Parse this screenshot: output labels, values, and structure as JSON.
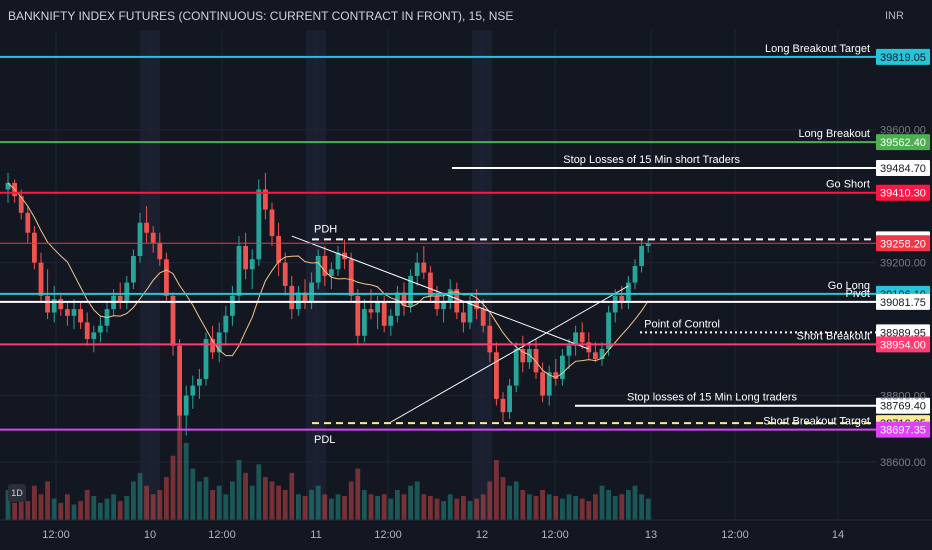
{
  "header": {
    "title": "BANKNIFTY INDEX FUTURES (CONTINUOUS: CURRENT CONTRACT IN FRONT), 15, NSE",
    "currency": "INR"
  },
  "badge": {
    "label": "1D"
  },
  "chart_data": {
    "type": "candlestick",
    "ylim": [
      38600,
      39900
    ],
    "y_ticks": [
      {
        "value": 39600,
        "label": "39600.00"
      },
      {
        "value": 39200,
        "label": "39200.00"
      },
      {
        "value": 38800,
        "label": "38800.00"
      },
      {
        "value": 38600,
        "label": "38600.00"
      }
    ],
    "x_ticks": [
      "12:00",
      "10",
      "12:00",
      "11",
      "12:00",
      "12",
      "12:00",
      "13",
      "12:00",
      "14"
    ],
    "levels": [
      {
        "name": "Long Breakout Target",
        "value": 39819.05,
        "label": "39819.05",
        "color": "#26c6da",
        "badge_bg": "#26c6da",
        "badge_fg": "#131722",
        "style": "solid"
      },
      {
        "name": "Long Breakout",
        "value": 39562.4,
        "label": "39562.40",
        "color": "#4caf50",
        "badge_bg": "#4caf50",
        "badge_fg": "#ffffff",
        "style": "solid"
      },
      {
        "name": "Stop Losses of 15 Min short Traders",
        "value": 39484.7,
        "label": "39484.70",
        "color": "#ffffff",
        "badge_bg": "#ffffff",
        "badge_fg": "#131722",
        "style": "solid",
        "partial": true
      },
      {
        "name": "Go Short",
        "value": 39410.3,
        "label": "39410.30",
        "color": "#ff1744",
        "badge_bg": "#ff1744",
        "badge_fg": "#ffffff",
        "style": "solid"
      },
      {
        "name": "PDH",
        "value": 39270.05,
        "label": "39270.05",
        "color": "#ffffff",
        "badge_bg": "#ffffff",
        "badge_fg": "#131722",
        "style": "dashed",
        "partial": true
      },
      {
        "name": "",
        "value": 39258.2,
        "label": "39258.20",
        "color": "#f23645",
        "badge_bg": "#f23645",
        "badge_fg": "#ffffff",
        "style": "thin"
      },
      {
        "name": "Go Long",
        "value": 39106.1,
        "label": "39106.10",
        "color": "#26c6da",
        "badge_bg": "#26c6da",
        "badge_fg": "#131722",
        "style": "solid"
      },
      {
        "name": "Pivot",
        "value": 39081.75,
        "label": "39081.75",
        "color": "#ffffff",
        "badge_bg": "#ffffff",
        "badge_fg": "#131722",
        "style": "solid"
      },
      {
        "name": "Point of Control",
        "value": 38989.95,
        "label": "38989.95",
        "color": "#ffffff",
        "badge_bg": "#ffffff",
        "badge_fg": "#131722",
        "style": "dotted",
        "partial": true
      },
      {
        "name": "Short Breakout",
        "value": 38954.0,
        "label": "38954.00",
        "color": "#ff3d71",
        "badge_bg": "#ff3d71",
        "badge_fg": "#ffffff",
        "style": "solid"
      },
      {
        "name": "Stop losses of 15 Min Long traders",
        "value": 38769.4,
        "label": "38769.40",
        "color": "#ffffff",
        "badge_bg": "#ffffff",
        "badge_fg": "#131722",
        "style": "solid",
        "partial": true
      },
      {
        "name": "PDL",
        "value": 38716.95,
        "label": "38716.95",
        "color": "#ffeb99",
        "badge_bg": "#ffeb99",
        "badge_fg": "#131722",
        "style": "dashed",
        "partial": true
      },
      {
        "name": "Short Breakout Target",
        "value": 38697.35,
        "label": "38697.35",
        "color": "#e040fb",
        "badge_bg": "#e040fb",
        "badge_fg": "#ffffff",
        "style": "solid"
      }
    ],
    "annotations": [
      "PDH",
      "PDL"
    ],
    "candles": [
      {
        "o": 39420,
        "h": 39470,
        "l": 39380,
        "c": 39440
      },
      {
        "o": 39440,
        "h": 39450,
        "l": 39380,
        "c": 39400
      },
      {
        "o": 39400,
        "h": 39420,
        "l": 39330,
        "c": 39350
      },
      {
        "o": 39350,
        "h": 39370,
        "l": 39260,
        "c": 39290
      },
      {
        "o": 39290,
        "h": 39310,
        "l": 39180,
        "c": 39200
      },
      {
        "o": 39200,
        "h": 39230,
        "l": 39080,
        "c": 39100
      },
      {
        "o": 39100,
        "h": 39180,
        "l": 39030,
        "c": 39050
      },
      {
        "o": 39050,
        "h": 39130,
        "l": 39020,
        "c": 39090
      },
      {
        "o": 39090,
        "h": 39110,
        "l": 39040,
        "c": 39060
      },
      {
        "o": 39060,
        "h": 39080,
        "l": 39010,
        "c": 39040
      },
      {
        "o": 39040,
        "h": 39090,
        "l": 39000,
        "c": 39060
      },
      {
        "o": 39060,
        "h": 39080,
        "l": 39000,
        "c": 39020
      },
      {
        "o": 39020,
        "h": 39050,
        "l": 38950,
        "c": 38970
      },
      {
        "o": 38970,
        "h": 39010,
        "l": 38930,
        "c": 38990
      },
      {
        "o": 38990,
        "h": 39040,
        "l": 38960,
        "c": 39010
      },
      {
        "o": 39010,
        "h": 39080,
        "l": 38990,
        "c": 39060
      },
      {
        "o": 39060,
        "h": 39120,
        "l": 39040,
        "c": 39100
      },
      {
        "o": 39100,
        "h": 39140,
        "l": 39060,
        "c": 39080
      },
      {
        "o": 39080,
        "h": 39160,
        "l": 39060,
        "c": 39140
      },
      {
        "o": 39140,
        "h": 39240,
        "l": 39120,
        "c": 39220
      },
      {
        "o": 39220,
        "h": 39350,
        "l": 39200,
        "c": 39320
      },
      {
        "o": 39320,
        "h": 39370,
        "l": 39260,
        "c": 39290
      },
      {
        "o": 39290,
        "h": 39310,
        "l": 39230,
        "c": 39260
      },
      {
        "o": 39260,
        "h": 39290,
        "l": 39190,
        "c": 39210
      },
      {
        "o": 39210,
        "h": 39230,
        "l": 39080,
        "c": 39100
      },
      {
        "o": 39100,
        "h": 39110,
        "l": 38920,
        "c": 38950
      },
      {
        "o": 38950,
        "h": 38970,
        "l": 38700,
        "c": 38740
      },
      {
        "o": 38740,
        "h": 38830,
        "l": 38680,
        "c": 38800
      },
      {
        "o": 38800,
        "h": 38860,
        "l": 38760,
        "c": 38830
      },
      {
        "o": 38830,
        "h": 38880,
        "l": 38790,
        "c": 38850
      },
      {
        "o": 38850,
        "h": 38990,
        "l": 38830,
        "c": 38970
      },
      {
        "o": 38970,
        "h": 39010,
        "l": 38910,
        "c": 38930
      },
      {
        "o": 38930,
        "h": 39020,
        "l": 38900,
        "c": 38990
      },
      {
        "o": 38990,
        "h": 39070,
        "l": 38950,
        "c": 39040
      },
      {
        "o": 39040,
        "h": 39130,
        "l": 39010,
        "c": 39100
      },
      {
        "o": 39100,
        "h": 39280,
        "l": 39080,
        "c": 39250
      },
      {
        "o": 39250,
        "h": 39290,
        "l": 39150,
        "c": 39180
      },
      {
        "o": 39180,
        "h": 39240,
        "l": 39120,
        "c": 39210
      },
      {
        "o": 39210,
        "h": 39450,
        "l": 39190,
        "c": 39420
      },
      {
        "o": 39420,
        "h": 39470,
        "l": 39330,
        "c": 39360
      },
      {
        "o": 39360,
        "h": 39380,
        "l": 39250,
        "c": 39280
      },
      {
        "o": 39280,
        "h": 39320,
        "l": 39160,
        "c": 39200
      },
      {
        "o": 39200,
        "h": 39230,
        "l": 39100,
        "c": 39130
      },
      {
        "o": 39130,
        "h": 39160,
        "l": 39030,
        "c": 39060
      },
      {
        "o": 39060,
        "h": 39130,
        "l": 39040,
        "c": 39110
      },
      {
        "o": 39110,
        "h": 39150,
        "l": 39060,
        "c": 39080
      },
      {
        "o": 39080,
        "h": 39170,
        "l": 39060,
        "c": 39140
      },
      {
        "o": 39140,
        "h": 39240,
        "l": 39120,
        "c": 39220
      },
      {
        "o": 39220,
        "h": 39250,
        "l": 39130,
        "c": 39160
      },
      {
        "o": 39160,
        "h": 39200,
        "l": 39120,
        "c": 39180
      },
      {
        "o": 39180,
        "h": 39250,
        "l": 39160,
        "c": 39230
      },
      {
        "o": 39230,
        "h": 39270,
        "l": 39180,
        "c": 39210
      },
      {
        "o": 39210,
        "h": 39230,
        "l": 39080,
        "c": 39100
      },
      {
        "o": 39100,
        "h": 39120,
        "l": 38950,
        "c": 38980
      },
      {
        "o": 38980,
        "h": 39090,
        "l": 38960,
        "c": 39060
      },
      {
        "o": 39060,
        "h": 39120,
        "l": 39030,
        "c": 39050
      },
      {
        "o": 39050,
        "h": 39100,
        "l": 39000,
        "c": 39080
      },
      {
        "o": 39080,
        "h": 39100,
        "l": 38990,
        "c": 39010
      },
      {
        "o": 39010,
        "h": 39060,
        "l": 38980,
        "c": 39040
      },
      {
        "o": 39040,
        "h": 39130,
        "l": 39020,
        "c": 39110
      },
      {
        "o": 39110,
        "h": 39140,
        "l": 39040,
        "c": 39070
      },
      {
        "o": 39070,
        "h": 39180,
        "l": 39050,
        "c": 39160
      },
      {
        "o": 39160,
        "h": 39230,
        "l": 39130,
        "c": 39200
      },
      {
        "o": 39200,
        "h": 39250,
        "l": 39150,
        "c": 39170
      },
      {
        "o": 39170,
        "h": 39190,
        "l": 39080,
        "c": 39100
      },
      {
        "o": 39100,
        "h": 39130,
        "l": 39040,
        "c": 39060
      },
      {
        "o": 39060,
        "h": 39110,
        "l": 39020,
        "c": 39080
      },
      {
        "o": 39080,
        "h": 39150,
        "l": 39060,
        "c": 39120
      },
      {
        "o": 39120,
        "h": 39140,
        "l": 39030,
        "c": 39050
      },
      {
        "o": 39050,
        "h": 39080,
        "l": 38990,
        "c": 39020
      },
      {
        "o": 39020,
        "h": 39100,
        "l": 39000,
        "c": 39080
      },
      {
        "o": 39080,
        "h": 39120,
        "l": 39030,
        "c": 39060
      },
      {
        "o": 39060,
        "h": 39090,
        "l": 38990,
        "c": 39010
      },
      {
        "o": 39010,
        "h": 39050,
        "l": 38900,
        "c": 38930
      },
      {
        "o": 38930,
        "h": 38960,
        "l": 38770,
        "c": 38790
      },
      {
        "o": 38790,
        "h": 38810,
        "l": 38720,
        "c": 38750
      },
      {
        "o": 38750,
        "h": 38850,
        "l": 38730,
        "c": 38830
      },
      {
        "o": 38830,
        "h": 38960,
        "l": 38810,
        "c": 38940
      },
      {
        "o": 38940,
        "h": 38980,
        "l": 38870,
        "c": 38900
      },
      {
        "o": 38900,
        "h": 38960,
        "l": 38880,
        "c": 38940
      },
      {
        "o": 38940,
        "h": 38970,
        "l": 38850,
        "c": 38870
      },
      {
        "o": 38870,
        "h": 38900,
        "l": 38780,
        "c": 38800
      },
      {
        "o": 38800,
        "h": 38890,
        "l": 38770,
        "c": 38870
      },
      {
        "o": 38870,
        "h": 38910,
        "l": 38830,
        "c": 38850
      },
      {
        "o": 38850,
        "h": 38940,
        "l": 38830,
        "c": 38920
      },
      {
        "o": 38920,
        "h": 38970,
        "l": 38880,
        "c": 38950
      },
      {
        "o": 38950,
        "h": 39010,
        "l": 38920,
        "c": 38990
      },
      {
        "o": 38990,
        "h": 39020,
        "l": 38940,
        "c": 38960
      },
      {
        "o": 38960,
        "h": 38990,
        "l": 38910,
        "c": 38930
      },
      {
        "o": 38930,
        "h": 38960,
        "l": 38900,
        "c": 38910
      },
      {
        "o": 38910,
        "h": 38960,
        "l": 38890,
        "c": 38940
      },
      {
        "o": 38940,
        "h": 39070,
        "l": 38920,
        "c": 39050
      },
      {
        "o": 39050,
        "h": 39120,
        "l": 39020,
        "c": 39100
      },
      {
        "o": 39100,
        "h": 39130,
        "l": 39060,
        "c": 39080
      },
      {
        "o": 39080,
        "h": 39160,
        "l": 39060,
        "c": 39140
      },
      {
        "o": 39140,
        "h": 39210,
        "l": 39120,
        "c": 39190
      },
      {
        "o": 39190,
        "h": 39270,
        "l": 39170,
        "c": 39250
      },
      {
        "o": 39250,
        "h": 39270,
        "l": 39230,
        "c": 39258
      }
    ],
    "volumes": [
      35,
      20,
      28,
      22,
      40,
      30,
      45,
      25,
      20,
      30,
      18,
      22,
      35,
      28,
      20,
      25,
      30,
      22,
      28,
      45,
      55,
      40,
      30,
      35,
      50,
      75,
      140,
      90,
      60,
      45,
      50,
      35,
      40,
      30,
      45,
      70,
      55,
      40,
      65,
      50,
      45,
      40,
      35,
      55,
      30,
      28,
      35,
      40,
      30,
      25,
      30,
      28,
      45,
      60,
      35,
      30,
      28,
      30,
      25,
      35,
      30,
      40,
      45,
      30,
      28,
      25,
      22,
      30,
      25,
      28,
      22,
      25,
      30,
      45,
      70,
      50,
      40,
      45,
      35,
      30,
      28,
      35,
      30,
      28,
      25,
      30,
      28,
      25,
      22,
      30,
      40,
      35,
      28,
      30,
      35,
      40,
      30,
      25
    ],
    "trendlines": [
      {
        "from": [
          43,
          39280
        ],
        "to": [
          88,
          38940
        ],
        "color": "#ffffff"
      },
      {
        "from": [
          58,
          38720
        ],
        "to": [
          94,
          39130
        ],
        "color": "#ffffff"
      }
    ]
  }
}
